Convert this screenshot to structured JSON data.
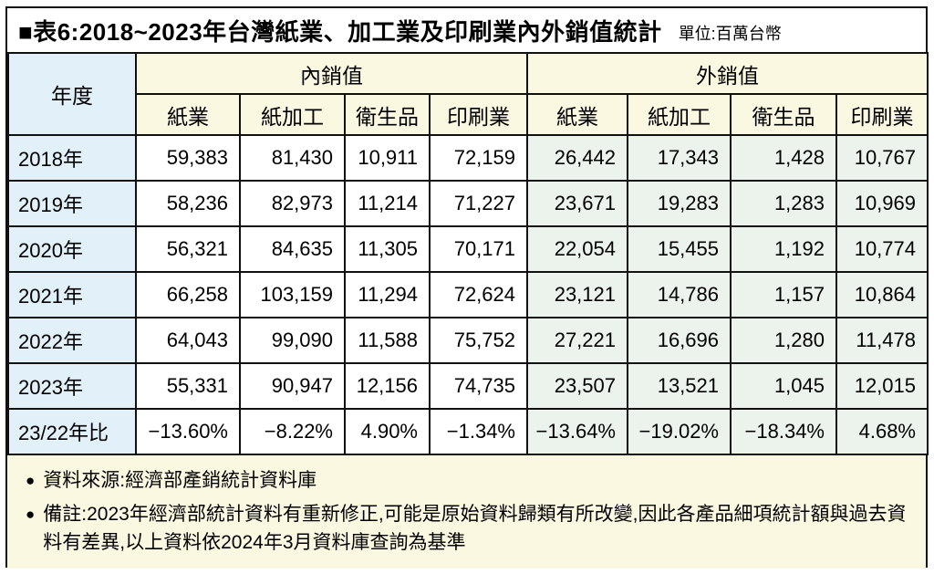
{
  "title": {
    "text": "■表6:2018~2023年台灣紙業、加工業及印刷業內外銷值統計",
    "unit": "單位:百萬台幣"
  },
  "chart_data": {
    "type": "table",
    "title": "表6:2018~2023年台灣紙業、加工業及印刷業內外銷值統計",
    "unit": "百萬台幣",
    "year_header": "年度",
    "groups": [
      {
        "label": "內銷值",
        "columns": [
          "紙業",
          "紙加工",
          "衛生品",
          "印刷業"
        ]
      },
      {
        "label": "外銷值",
        "columns": [
          "紙業",
          "紙加工",
          "衛生品",
          "印刷業"
        ]
      }
    ],
    "rows": [
      {
        "year": "2018年",
        "values": [
          "59,383",
          "81,430",
          "10,911",
          "72,159",
          "26,442",
          "17,343",
          "1,428",
          "10,767"
        ]
      },
      {
        "year": "2019年",
        "values": [
          "58,236",
          "82,973",
          "11,214",
          "71,227",
          "23,671",
          "19,283",
          "1,283",
          "10,969"
        ]
      },
      {
        "year": "2020年",
        "values": [
          "56,321",
          "84,635",
          "11,305",
          "70,171",
          "22,054",
          "15,455",
          "1,192",
          "10,774"
        ]
      },
      {
        "year": "2021年",
        "values": [
          "66,258",
          "103,159",
          "11,294",
          "72,624",
          "23,121",
          "14,786",
          "1,157",
          "10,864"
        ]
      },
      {
        "year": "2022年",
        "values": [
          "64,043",
          "99,090",
          "11,588",
          "75,752",
          "27,221",
          "16,696",
          "1,280",
          "11,478"
        ]
      },
      {
        "year": "2023年",
        "values": [
          "55,331",
          "90,947",
          "12,156",
          "74,735",
          "23,507",
          "13,521",
          "1,045",
          "12,015"
        ]
      },
      {
        "year": "23/22年比",
        "values": [
          "−13.60%",
          "−8.22%",
          "4.90%",
          "−1.34%",
          "−13.64%",
          "−19.02%",
          "−18.34%",
          "4.68%"
        ]
      }
    ]
  },
  "notes": [
    {
      "bullet": "●",
      "text": "資料來源:經濟部產銷統計資料庫"
    },
    {
      "bullet": "●",
      "text": "備註:2023年經濟部統計資料有重新修正,可能是原始資料歸類有所改變,因此各產品細項統計額與過去資料有差異,以上資料依2024年3月資料庫查詢為基準"
    }
  ],
  "colors": {
    "header_bg": "#fbf8e2",
    "year_col_bg": "#e2f0f9",
    "domestic_bg": "#ffffff",
    "export_bg": "#ecf2ec",
    "notes_bg": "#fbf8e2",
    "border": "#111111"
  }
}
